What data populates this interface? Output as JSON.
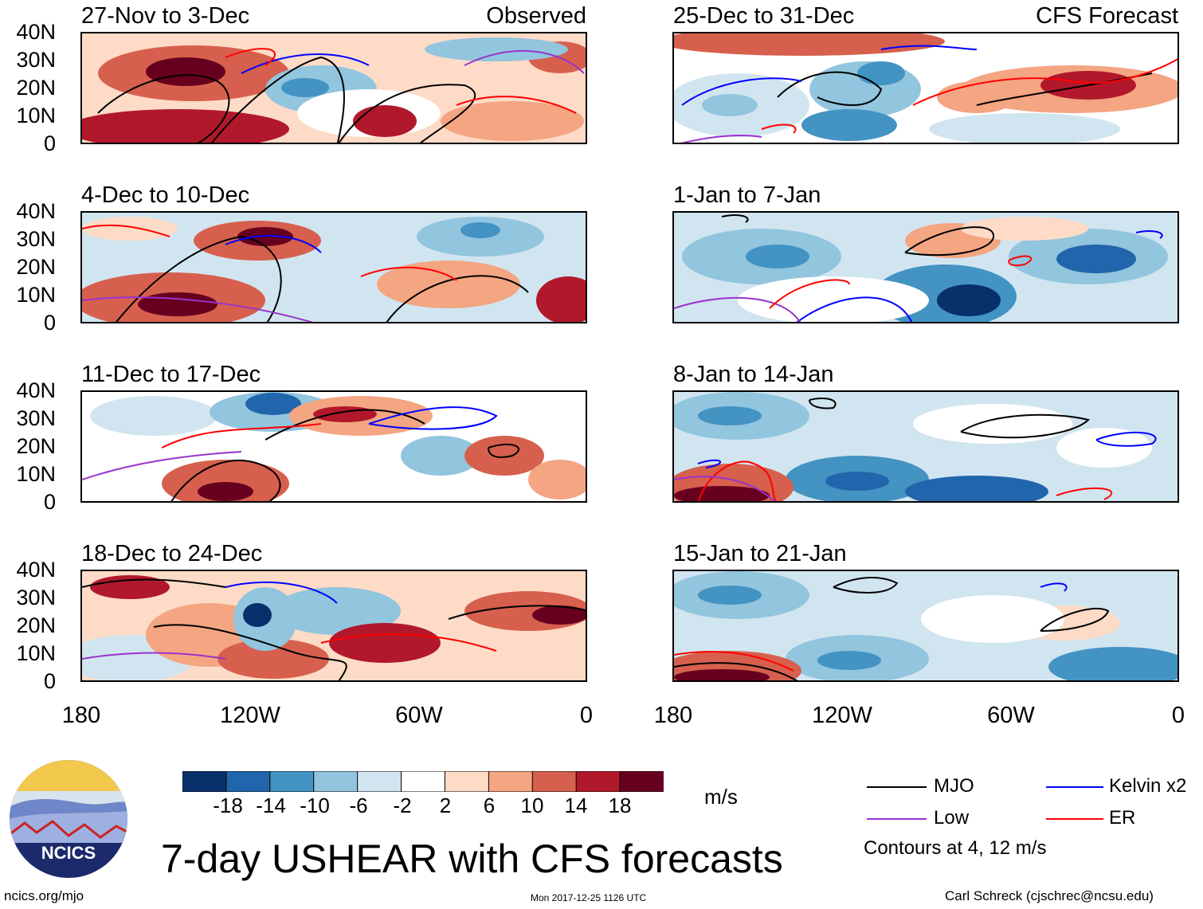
{
  "panels": [
    {
      "title": "27-Nov to 3-Dec",
      "label": "Observed"
    },
    {
      "title": "4-Dec to 10-Dec",
      "label": ""
    },
    {
      "title": "11-Dec to 17-Dec",
      "label": ""
    },
    {
      "title": "18-Dec to 24-Dec",
      "label": ""
    },
    {
      "title": "25-Dec to 31-Dec",
      "label": "CFS Forecast"
    },
    {
      "title": "1-Jan to 7-Jan",
      "label": ""
    },
    {
      "title": "8-Jan to 14-Jan",
      "label": ""
    },
    {
      "title": "15-Jan to 21-Jan",
      "label": ""
    }
  ],
  "lat_ticks": [
    "40N",
    "30N",
    "20N",
    "10N",
    "0"
  ],
  "lon_ticks": [
    "180",
    "120W",
    "60W",
    "0"
  ],
  "colorbar": {
    "labels": [
      "-18",
      "-14",
      "-10",
      "-6",
      "-2",
      "2",
      "6",
      "10",
      "14",
      "18"
    ],
    "colors": [
      "#08306b",
      "#2166ac",
      "#4393c3",
      "#92c5de",
      "#d1e5f0",
      "#ffffff",
      "#fddbc7",
      "#f4a582",
      "#d6604d",
      "#b2182b",
      "#67001f"
    ],
    "units": "m/s"
  },
  "legend": {
    "items": [
      {
        "name": "MJO",
        "color": "#000000"
      },
      {
        "name": "Kelvin x2",
        "color": "#0000ff"
      },
      {
        "name": "Low",
        "color": "#9933cc"
      },
      {
        "name": "ER",
        "color": "#ff0000"
      }
    ],
    "note": "Contours at 4, 12 m/s"
  },
  "logo_text": "NCICS",
  "main_title": "7-day USHEAR with CFS forecasts",
  "footer": {
    "left": "ncics.org/mjo",
    "center": "Mon 2017-12-25 1126 UTC",
    "right": "Carl Schreck (cjschrec@ncsu.edu)"
  }
}
